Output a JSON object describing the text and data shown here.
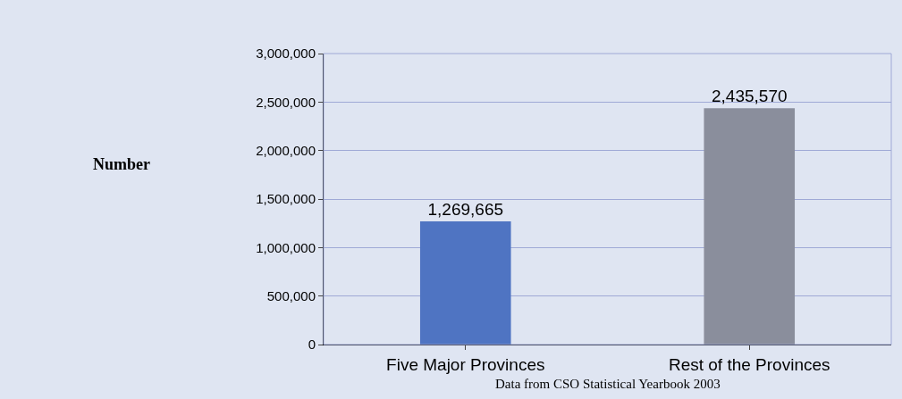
{
  "chart_data": {
    "type": "bar",
    "categories": [
      "Five Major Provinces",
      "Rest of the Provinces"
    ],
    "values": [
      1269665,
      2435570
    ],
    "colors": [
      "#4f74c2",
      "#8a8e9c"
    ],
    "value_labels": [
      "1,269,665",
      "2,435,570"
    ],
    "ylim": [
      0,
      3000000
    ],
    "yticks": [
      {
        "value": 0,
        "label": "0"
      },
      {
        "value": 500000,
        "label": "500,000"
      },
      {
        "value": 1000000,
        "label": "1,000,000"
      },
      {
        "value": 1500000,
        "label": "1,500,000"
      },
      {
        "value": 2000000,
        "label": "2,000,000"
      },
      {
        "value": 2500000,
        "label": "2,500,000"
      },
      {
        "value": 3000000,
        "label": "3,000,000"
      }
    ],
    "grid": "y",
    "annotations": [
      {
        "text": "Number"
      },
      {
        "text": "Data from CSO Statistical Yearbook 2003"
      }
    ]
  }
}
